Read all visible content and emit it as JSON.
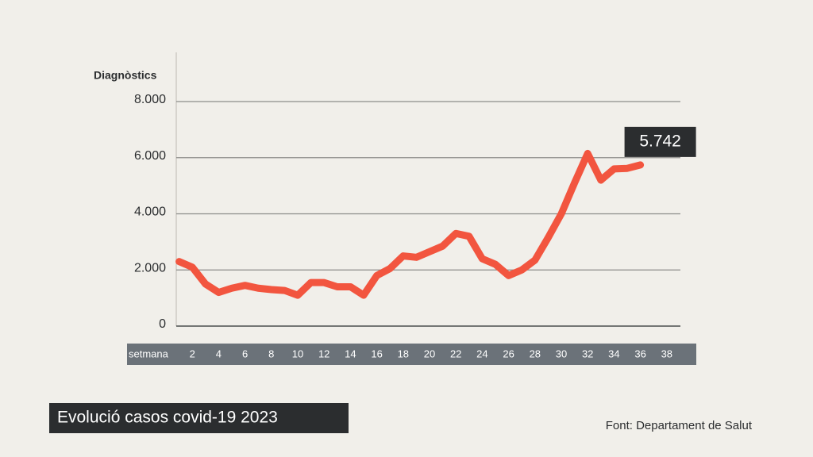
{
  "chart_data": {
    "type": "line",
    "title": "Evolució casos covid-19 2023",
    "source": "Font: Departament de Salut",
    "y_label": "Diagnòstics",
    "x_label": "setmana",
    "x": [
      1,
      2,
      3,
      4,
      5,
      6,
      7,
      8,
      9,
      10,
      11,
      12,
      13,
      14,
      15,
      16,
      17,
      18,
      19,
      20,
      21,
      22,
      23,
      24,
      25,
      26,
      27,
      28,
      29,
      30,
      31,
      32,
      33,
      34,
      35,
      36
    ],
    "series": [
      {
        "color": "#f2553f",
        "values": [
          2300,
          2100,
          1500,
          1200,
          1350,
          1450,
          1350,
          1300,
          1270,
          1100,
          1550,
          1550,
          1400,
          1400,
          1100,
          1800,
          2050,
          2500,
          2450,
          2650,
          2850,
          3300,
          3200,
          2400,
          2200,
          1800,
          2000,
          2350,
          3150,
          4000,
          5100,
          6150,
          5200,
          5600,
          5620,
          5742
        ],
        "value_labels": [
          null,
          null,
          null,
          null,
          null,
          null,
          null,
          null,
          null,
          null,
          null,
          null,
          null,
          null,
          null,
          null,
          null,
          null,
          null,
          null,
          null,
          null,
          null,
          null,
          null,
          null,
          null,
          null,
          null,
          null,
          null,
          null,
          null,
          null,
          null,
          "5.742"
        ]
      }
    ],
    "xlim": [
      0,
      40
    ],
    "xticks": [
      2,
      4,
      6,
      8,
      10,
      12,
      14,
      16,
      18,
      20,
      22,
      24,
      26,
      28,
      30,
      32,
      34,
      36,
      38
    ],
    "ylim": [
      0,
      8000
    ],
    "yticks": [
      0,
      {
        "value": 2000,
        "label": "2.000"
      },
      {
        "value": 4000,
        "label": "4.000"
      },
      {
        "value": 6000,
        "label": "6.000"
      },
      {
        "value": 8000,
        "label": "8.000"
      }
    ],
    "grid": true
  }
}
